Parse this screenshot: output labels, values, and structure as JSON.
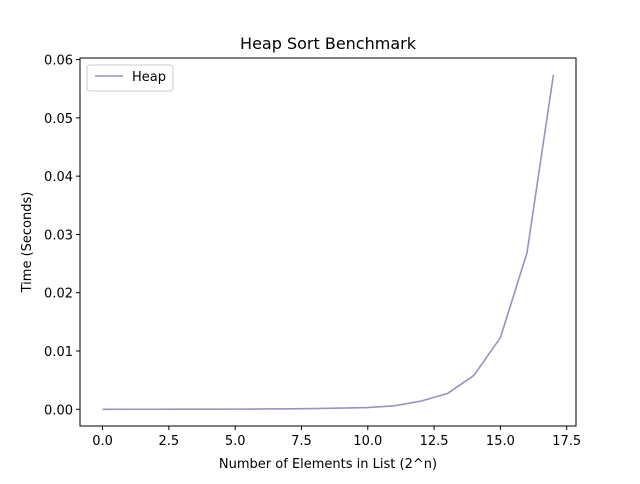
{
  "chart_data": {
    "type": "line",
    "title": "Heap Sort Benchmark",
    "xlabel": "Number of Elements in List (2^n)",
    "ylabel": "Time (Seconds)",
    "xlim": [
      -0.85,
      17.85
    ],
    "ylim": [
      -0.00287,
      0.06027
    ],
    "x_ticks": [
      0,
      2.5,
      5,
      7.5,
      10,
      12.5,
      15,
      17.5
    ],
    "x_tick_labels": [
      "0.0",
      "2.5",
      "5.0",
      "7.5",
      "10.0",
      "12.5",
      "15.0",
      "17.5"
    ],
    "y_ticks": [
      0,
      0.01,
      0.02,
      0.03,
      0.04,
      0.05,
      0.06
    ],
    "y_tick_labels": [
      "0.00",
      "0.01",
      "0.02",
      "0.03",
      "0.04",
      "0.05",
      "0.06"
    ],
    "grid": false,
    "legend_position": "top-left",
    "series": [
      {
        "name": "Heap",
        "color": "#9b8fc4",
        "x": [
          0,
          1,
          2,
          3,
          4,
          5,
          6,
          7,
          8,
          9,
          10,
          11,
          12,
          13,
          14,
          15,
          16,
          17
        ],
        "y": [
          1e-06,
          2e-06,
          4e-06,
          7e-06,
          1.3e-05,
          2.5e-05,
          5e-05,
          8e-05,
          0.00012,
          0.0002,
          0.0003,
          0.0006,
          0.0014,
          0.0027,
          0.0058,
          0.0123,
          0.0268,
          0.0574
        ]
      }
    ]
  }
}
